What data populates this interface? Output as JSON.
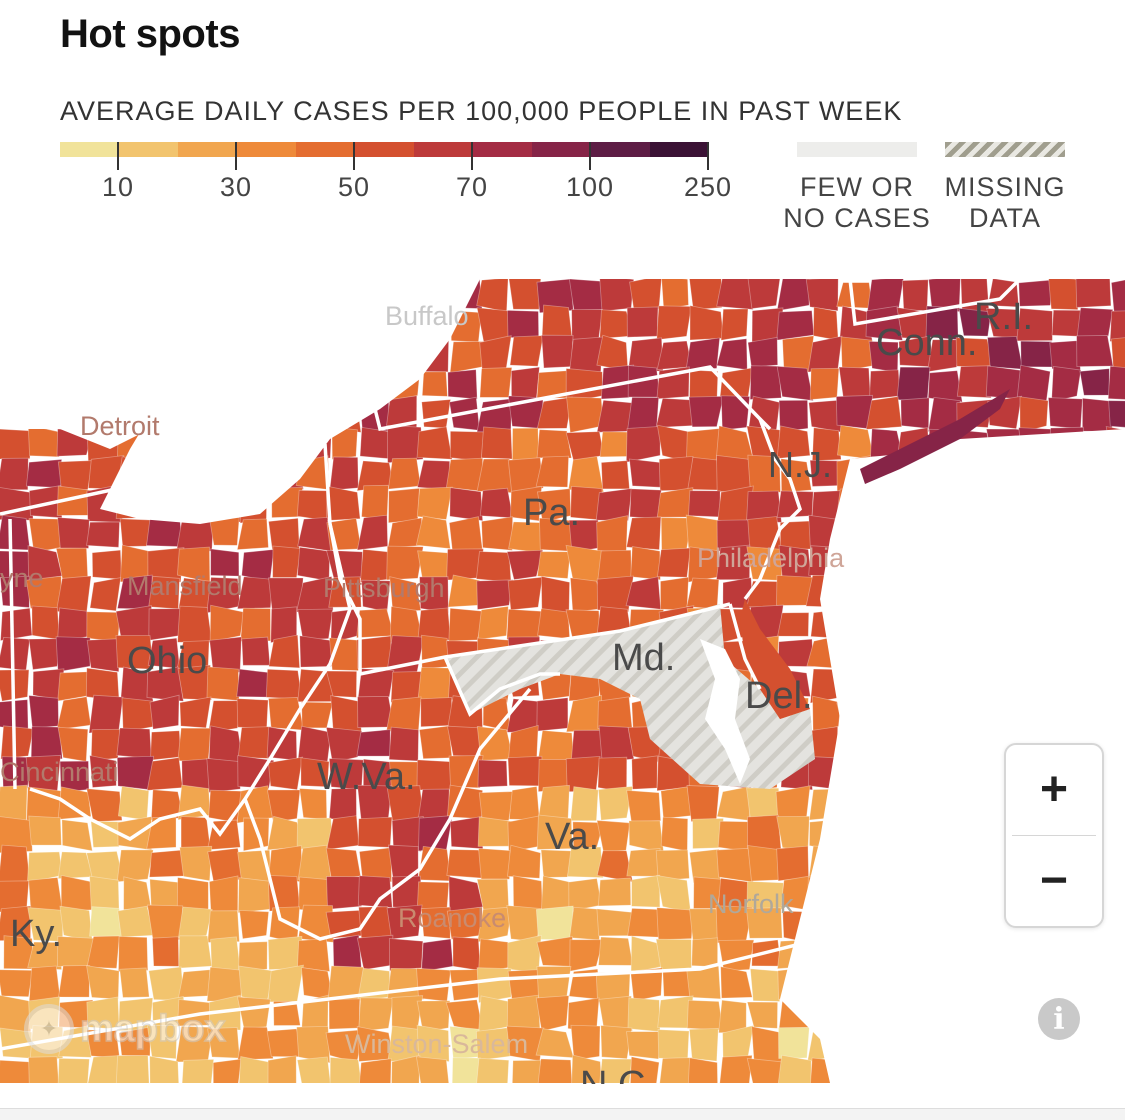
{
  "header": {
    "title": "Hot spots"
  },
  "legend": {
    "title": "AVERAGE DAILY CASES PER 100,000 PEOPLE IN PAST WEEK",
    "colors": [
      "#f1e39a",
      "#f2c46e",
      "#f1a64f",
      "#ee8a3a",
      "#e46d30",
      "#d4502f",
      "#bd3a3a",
      "#a42c44",
      "#862447",
      "#5e1d45",
      "#3b1235"
    ],
    "ticks": [
      "10",
      "30",
      "50",
      "70",
      "100",
      "250"
    ],
    "few_cases_label_1": "FEW OR",
    "few_cases_label_2": "NO CASES",
    "few_cases_color": "#ededeb",
    "missing_label_1": "MISSING",
    "missing_label_2": "DATA"
  },
  "map": {
    "state_labels": {
      "conn": "Conn.",
      "ri": "R.I.",
      "nj": "N.J.",
      "pa": "Pa.",
      "md": "Md.",
      "del": "Del.",
      "ohio": "Ohio",
      "wva": "W.Va.",
      "va": "Va.",
      "ky": "Ky.",
      "nc": "N.C."
    },
    "city_labels": {
      "buffalo": "Buffalo",
      "detroit": "Detroit",
      "mansfield": "Mansfield",
      "pittsburgh": "Pittsburgh",
      "philadelphia": "Philadelphia",
      "cincinnati": "Cincinnati",
      "roanoke": "Roanoke",
      "norfolk": "Norfolk",
      "winston_salem": "Winston-Salem",
      "wayne": "yne"
    },
    "attribution": "mapbox"
  },
  "controls": {
    "zoom_in": "+",
    "zoom_out": "−",
    "info_icon": "i"
  }
}
